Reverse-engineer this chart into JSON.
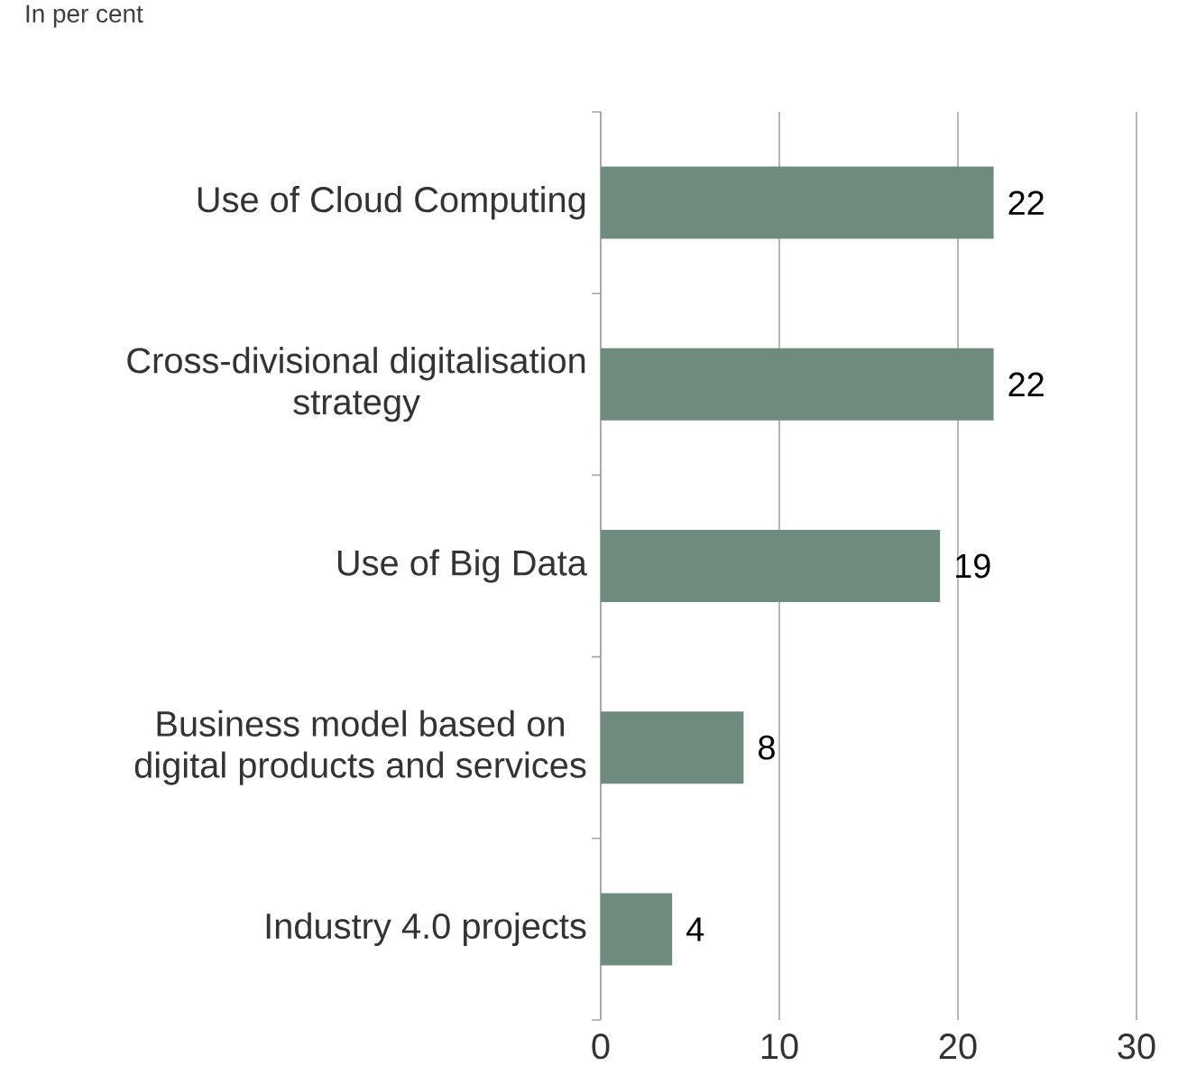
{
  "chart_data": {
    "type": "bar",
    "orientation": "horizontal",
    "title": "In per cent",
    "categories": [
      "Use of Cloud Computing",
      "Cross-divisional digitalisation strategy",
      "Use of Big Data",
      "Business model based on digital products and services",
      "Industry 4.0 projects"
    ],
    "values": [
      22,
      22,
      19,
      8,
      4
    ],
    "color": "#6f8b7e",
    "xlim": [
      0,
      30
    ],
    "xticks": [
      0,
      10,
      20,
      30
    ],
    "grid": "x",
    "data_labels": true
  }
}
